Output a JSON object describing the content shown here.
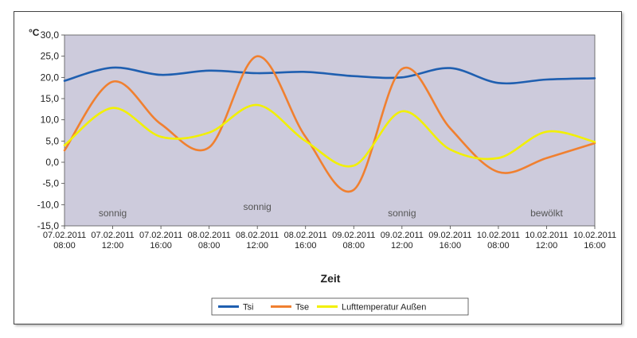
{
  "chart_data": {
    "type": "line",
    "unit_label": "°C",
    "xlabel": "Zeit",
    "ylim": [
      -15,
      30
    ],
    "y_ticks": [
      "30,0",
      "25,0",
      "20,0",
      "15,0",
      "10,0",
      "5,0",
      "0,0",
      "-5,0",
      "-10,0",
      "-15,0"
    ],
    "x_ticks": [
      [
        "07.02.2011",
        "08:00"
      ],
      [
        "07.02.2011",
        "12:00"
      ],
      [
        "07.02.2011",
        "16:00"
      ],
      [
        "08.02.2011",
        "08:00"
      ],
      [
        "08.02.2011",
        "12:00"
      ],
      [
        "08.02.2011",
        "16:00"
      ],
      [
        "09.02.2011",
        "08:00"
      ],
      [
        "09.02.2011",
        "12:00"
      ],
      [
        "09.02.2011",
        "16:00"
      ],
      [
        "10.02.2011",
        "08:00"
      ],
      [
        "10.02.2011",
        "12:00"
      ],
      [
        "10.02.2011",
        "16:00"
      ]
    ],
    "annotations": [
      {
        "text": "sonnig",
        "at": 1,
        "y": -12
      },
      {
        "text": "sonnig",
        "at": 4,
        "y": -10.5
      },
      {
        "text": "sonnig",
        "at": 7,
        "y": -12
      },
      {
        "text": "bewölkt",
        "at": 10,
        "y": -12
      }
    ],
    "grid": false,
    "plot_background": "#cdcbdc",
    "legend_position": "bottom",
    "series": [
      {
        "name": "Tsi",
        "color": "#1f5fb0",
        "points": [
          [
            0,
            19.2
          ],
          [
            1,
            22.3
          ],
          [
            2,
            20.6
          ],
          [
            3,
            21.6
          ],
          [
            4,
            21.0
          ],
          [
            5,
            21.3
          ],
          [
            6,
            20.3
          ],
          [
            7,
            20.0
          ],
          [
            8,
            22.2
          ],
          [
            9,
            18.7
          ],
          [
            10,
            19.5
          ],
          [
            11,
            19.8
          ]
        ]
      },
      {
        "name": "Tse",
        "color": "#f08030",
        "points": [
          [
            0,
            2.8
          ],
          [
            1,
            19.0
          ],
          [
            2,
            9.0
          ],
          [
            3,
            3.5
          ],
          [
            4,
            25.0
          ],
          [
            5,
            6.0
          ],
          [
            6,
            -6.5
          ],
          [
            7,
            22.0
          ],
          [
            8,
            8.0
          ],
          [
            9,
            -2.3
          ],
          [
            10,
            1.0
          ],
          [
            11,
            4.5
          ]
        ]
      },
      {
        "name": "Lufttemperatur Außen",
        "color": "#f2f000",
        "points": [
          [
            0,
            4.0
          ],
          [
            1,
            12.8
          ],
          [
            2,
            6.0
          ],
          [
            3,
            7.0
          ],
          [
            4,
            13.5
          ],
          [
            5,
            5.0
          ],
          [
            6,
            -0.8
          ],
          [
            7,
            12.0
          ],
          [
            8,
            3.0
          ],
          [
            9,
            1.0
          ],
          [
            10,
            7.2
          ],
          [
            11,
            4.8
          ]
        ]
      }
    ]
  }
}
